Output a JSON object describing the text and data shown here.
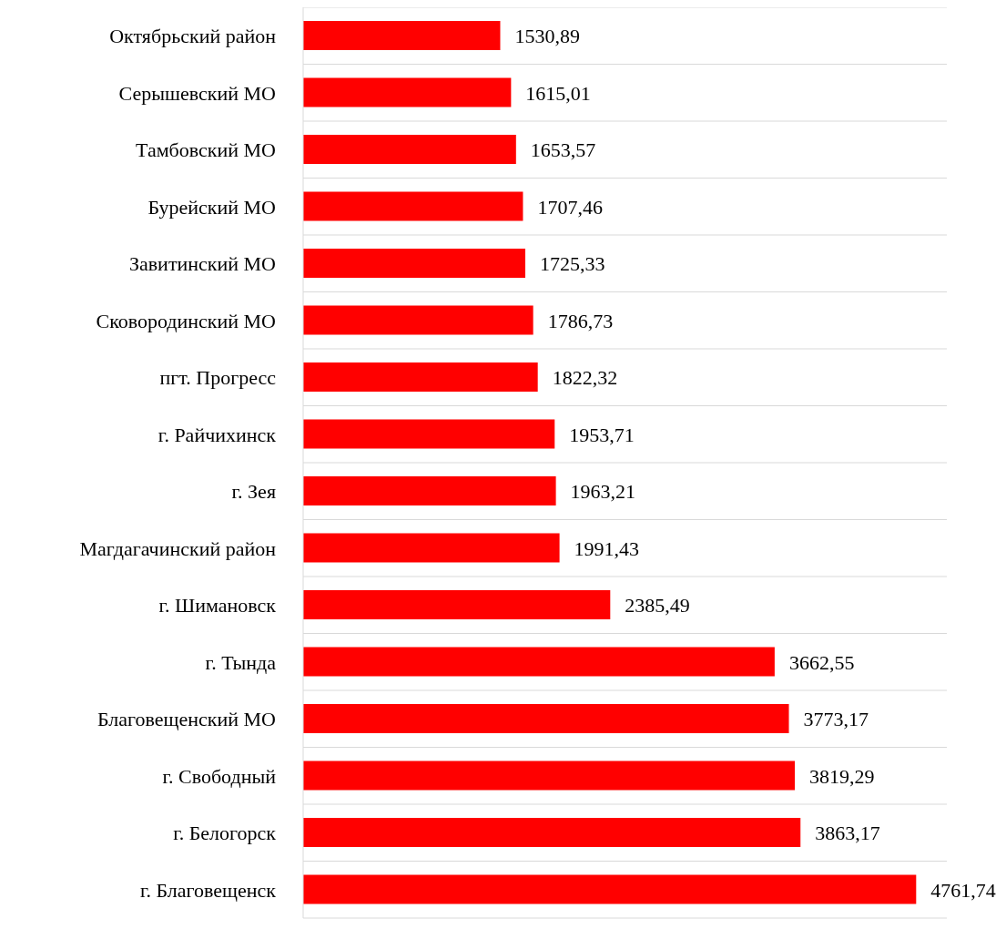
{
  "chart_data": {
    "type": "bar",
    "orientation": "horizontal",
    "categories": [
      "Октябрьский район",
      "Серышевский МО",
      "Тамбовский МО",
      "Бурейский МО",
      "Завитинский МО",
      "Сковородинский МО",
      "пгт. Прогресс",
      "г. Райчихинск",
      "г. Зея",
      "Магдагачинский район",
      "г. Шимановск",
      "г. Тында",
      "Благовещенский МО",
      "г. Свободный",
      "г. Белогорск",
      "г. Благовещенск"
    ],
    "values": [
      1530.89,
      1615.01,
      1653.57,
      1707.46,
      1725.33,
      1786.73,
      1822.32,
      1953.71,
      1963.21,
      1991.43,
      2385.49,
      3662.55,
      3773.17,
      3819.29,
      3863.17,
      4761.74
    ],
    "value_labels": [
      "1530,89",
      "1615,01",
      "1653,57",
      "1707,46",
      "1725,33",
      "1786,73",
      "1822,32",
      "1953,71",
      "1963,21",
      "1991,43",
      "2385,49",
      "3662,55",
      "3773,17",
      "3819,29",
      "3863,17",
      "4761,74"
    ],
    "color": "#ff0000",
    "xlim": [
      0,
      5000
    ],
    "tick_labels": "y",
    "grid": "y"
  }
}
